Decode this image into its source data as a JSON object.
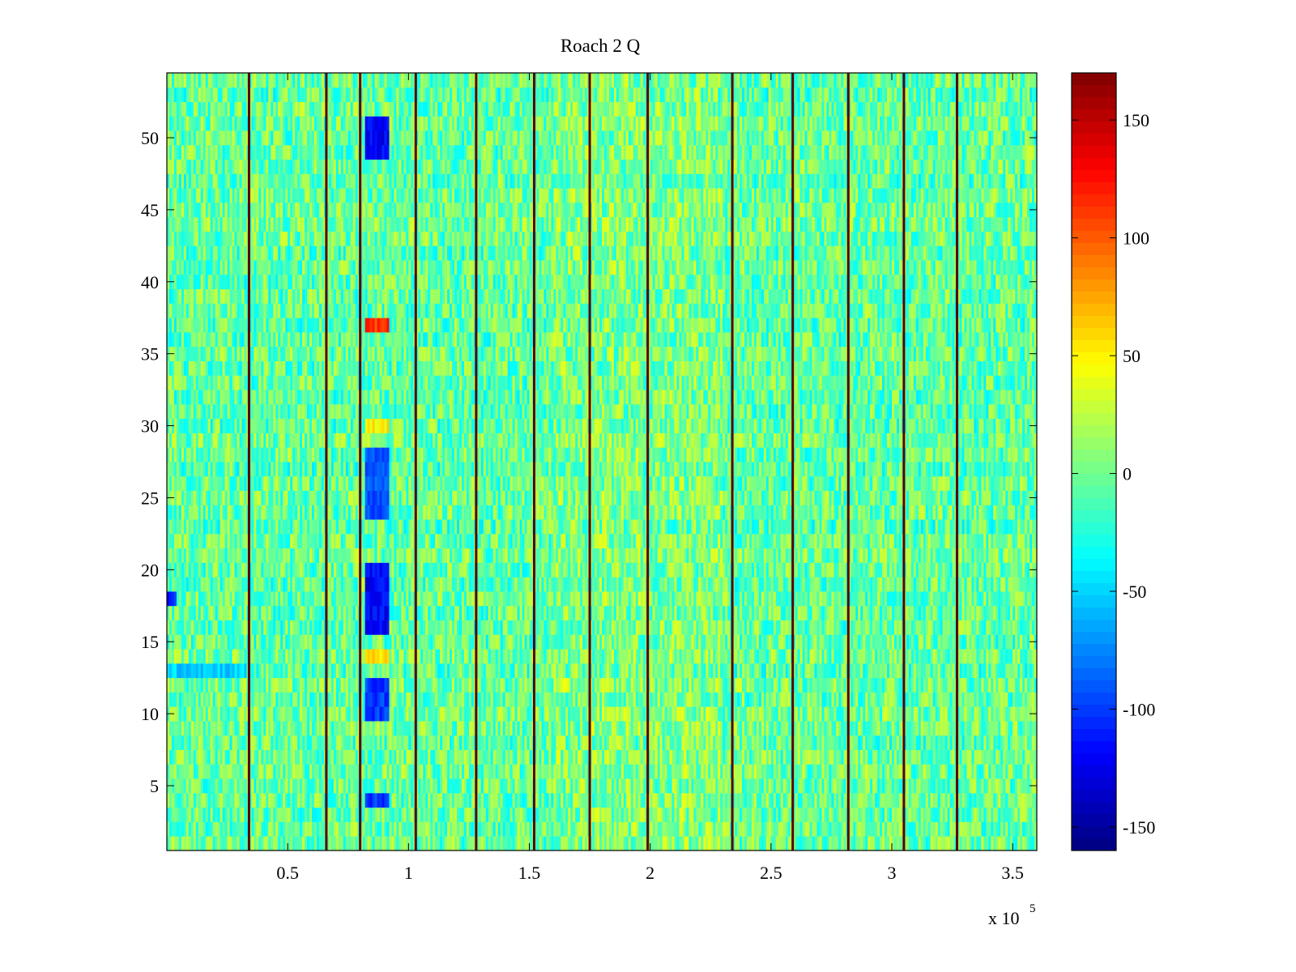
{
  "chart_data": {
    "type": "heatmap",
    "title": "Roach 2 Q",
    "xlabel": "",
    "ylabel": "",
    "x_multiplier_label": "x 10",
    "x_multiplier_exponent": "5",
    "xlim": [
      0,
      3.6
    ],
    "ylim": [
      0.5,
      54.5
    ],
    "x_ticks": [
      0.5,
      1,
      1.5,
      2,
      2.5,
      3,
      3.5
    ],
    "x_tick_labels": [
      "0.5",
      "1",
      "1.5",
      "2",
      "2.5",
      "3",
      "3.5"
    ],
    "y_ticks": [
      5,
      10,
      15,
      20,
      25,
      30,
      35,
      40,
      45,
      50
    ],
    "y_tick_labels": [
      "5",
      "10",
      "15",
      "20",
      "25",
      "30",
      "35",
      "40",
      "45",
      "50"
    ],
    "colormap": "jet",
    "clim": [
      -160,
      170
    ],
    "colorbar_ticks": [
      150,
      100,
      50,
      0,
      -50,
      -100,
      -150
    ],
    "colorbar_tick_labels": [
      "150",
      "100",
      "50",
      "0",
      "-50",
      "-100",
      "-150"
    ],
    "vertical_stripes_x": [
      0.34,
      0.66,
      0.8,
      1.03,
      1.28,
      1.52,
      1.75,
      1.99,
      2.34,
      2.59,
      2.82,
      3.05,
      3.27
    ],
    "anomalies": [
      {
        "x": [
          0.82,
          0.92
        ],
        "rows": [
          49,
          50,
          51
        ],
        "value": -120
      },
      {
        "x": [
          0.82,
          0.92
        ],
        "rows": [
          37
        ],
        "value": 110
      },
      {
        "x": [
          0.82,
          0.92
        ],
        "rows": [
          30
        ],
        "value": 50
      },
      {
        "x": [
          0.82,
          0.92
        ],
        "rows": [
          24,
          25,
          26,
          27,
          28
        ],
        "value": -90
      },
      {
        "x": [
          0.82,
          0.92
        ],
        "rows": [
          16,
          17,
          18,
          19,
          20
        ],
        "value": -120
      },
      {
        "x": [
          0.82,
          0.92
        ],
        "rows": [
          14
        ],
        "value": 55
      },
      {
        "x": [
          0.82,
          0.92
        ],
        "rows": [
          10,
          11,
          12
        ],
        "value": -100
      },
      {
        "x": [
          0.82,
          0.92
        ],
        "rows": [
          4
        ],
        "value": -100
      },
      {
        "x": [
          0.0,
          0.04
        ],
        "rows": [
          18
        ],
        "value": -110
      },
      {
        "x": [
          0.0,
          0.33
        ],
        "rows": [
          13
        ],
        "value": -50
      }
    ],
    "noise_range": [
      -40,
      40
    ]
  },
  "colors": {
    "stripe_dark": "#5a0000",
    "axes_edge": "#000000",
    "background": "#ffffff"
  }
}
